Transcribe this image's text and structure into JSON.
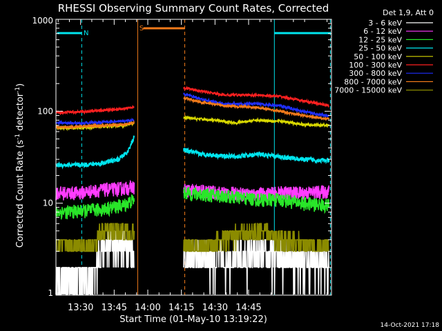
{
  "chart_data": {
    "type": "line",
    "title": "RHESSI Observing Summary Count Rates, Corrected",
    "xlabel": "Start Time (01-May-10 13:19:22)",
    "ylabel": "Corrected Count Rate (s^-1 detector^-1)",
    "ylabel_parts": [
      "Corrected Count Rate (s",
      "-1",
      " detector",
      "-1",
      ")"
    ],
    "yscale": "log",
    "ylim": [
      1,
      1000
    ],
    "xlim_minutes_after_1319": [
      0,
      123
    ],
    "x_ticks": [
      "13:30",
      "13:45",
      "14:00",
      "14:15",
      "14:30",
      "14:45"
    ],
    "y_ticks": [
      "1",
      "10",
      "100",
      "1000"
    ],
    "legend_header": "Det 1,9, Att 0",
    "footer_date": "14-Oct-2021 17:18",
    "markers": [
      {
        "label": "N",
        "color": "#00e5ee"
      },
      {
        "label": "S",
        "color": "#f07a1a"
      }
    ],
    "data_gap_minutes": [
      36,
      57
    ],
    "series": [
      {
        "name": "3 - 6 keV",
        "color": "#ffffff",
        "pre": [
          [
            0,
            1.6
          ],
          [
            18,
            1.6
          ],
          [
            19,
            3.0
          ],
          [
            28,
            3.8
          ],
          [
            35,
            3.2
          ]
        ],
        "post": [
          [
            57,
            2.6
          ],
          [
            75,
            2.5
          ],
          [
            90,
            2.7
          ],
          [
            100,
            2.6
          ],
          [
            112,
            2.4
          ],
          [
            118,
            2.2
          ],
          [
            122,
            2.2
          ]
        ]
      },
      {
        "name": "6 - 12 keV",
        "color": "#ff3cff",
        "pre": [
          [
            0,
            13
          ],
          [
            10,
            13
          ],
          [
            20,
            14
          ],
          [
            30,
            14.5
          ],
          [
            35,
            15
          ]
        ],
        "post": [
          [
            57,
            14
          ],
          [
            75,
            13
          ],
          [
            90,
            12.5
          ],
          [
            100,
            13
          ],
          [
            110,
            13
          ],
          [
            122,
            13.5
          ]
        ]
      },
      {
        "name": "12 - 25 keV",
        "color": "#29e629",
        "pre": [
          [
            0,
            8
          ],
          [
            10,
            8.2
          ],
          [
            20,
            8.6
          ],
          [
            30,
            9.5
          ],
          [
            35,
            11
          ]
        ],
        "post": [
          [
            57,
            13
          ],
          [
            75,
            12
          ],
          [
            90,
            11
          ],
          [
            100,
            11
          ],
          [
            110,
            10
          ],
          [
            122,
            9.5
          ]
        ]
      },
      {
        "name": "25 - 50 keV",
        "color": "#00e5ee",
        "pre": [
          [
            0,
            26
          ],
          [
            10,
            26
          ],
          [
            20,
            27
          ],
          [
            28,
            30
          ],
          [
            32,
            36
          ],
          [
            35,
            52
          ]
        ],
        "post": [
          [
            57,
            38
          ],
          [
            65,
            34
          ],
          [
            80,
            32
          ],
          [
            90,
            34
          ],
          [
            100,
            32
          ],
          [
            110,
            30
          ],
          [
            122,
            29
          ]
        ]
      },
      {
        "name": "50 - 100 keV",
        "color": "#d8d800",
        "pre": [
          [
            0,
            66
          ],
          [
            10,
            66
          ],
          [
            20,
            68
          ],
          [
            30,
            70
          ],
          [
            35,
            74
          ]
        ],
        "post": [
          [
            57,
            85
          ],
          [
            70,
            80
          ],
          [
            80,
            75
          ],
          [
            90,
            80
          ],
          [
            100,
            78
          ],
          [
            110,
            72
          ],
          [
            122,
            70
          ]
        ]
      },
      {
        "name": "100 - 300 keV",
        "color": "#ff2020",
        "pre": [
          [
            0,
            97
          ],
          [
            10,
            98
          ],
          [
            20,
            102
          ],
          [
            30,
            106
          ],
          [
            35,
            112
          ]
        ],
        "post": [
          [
            57,
            180
          ],
          [
            65,
            165
          ],
          [
            75,
            150
          ],
          [
            90,
            150
          ],
          [
            100,
            145
          ],
          [
            110,
            130
          ],
          [
            122,
            115
          ]
        ]
      },
      {
        "name": "300 - 800 keV",
        "color": "#1f2fff",
        "pre": [
          [
            0,
            75
          ],
          [
            10,
            74
          ],
          [
            20,
            76
          ],
          [
            30,
            78
          ],
          [
            35,
            80
          ]
        ],
        "post": [
          [
            57,
            155
          ],
          [
            65,
            135
          ],
          [
            75,
            120
          ],
          [
            90,
            120
          ],
          [
            100,
            115
          ],
          [
            110,
            100
          ],
          [
            122,
            88
          ]
        ]
      },
      {
        "name": "800 - 7000 keV",
        "color": "#f07a1a",
        "pre": [
          [
            0,
            67
          ],
          [
            10,
            68
          ],
          [
            20,
            70
          ],
          [
            30,
            72
          ],
          [
            35,
            75
          ]
        ],
        "post": [
          [
            57,
            140
          ],
          [
            65,
            125
          ],
          [
            75,
            115
          ],
          [
            90,
            110
          ],
          [
            100,
            100
          ],
          [
            110,
            90
          ],
          [
            122,
            82
          ]
        ]
      },
      {
        "name": "7000 - 15000 keV",
        "color": "#8b8b00",
        "pre": [
          [
            0,
            3.5
          ],
          [
            18,
            3.5
          ],
          [
            19,
            4.8
          ],
          [
            28,
            5.0
          ],
          [
            35,
            4.6
          ]
        ],
        "post": [
          [
            57,
            3.6
          ],
          [
            70,
            3.6
          ],
          [
            80,
            4.5
          ],
          [
            90,
            5.0
          ],
          [
            100,
            4.2
          ],
          [
            110,
            3.6
          ],
          [
            122,
            3.2
          ]
        ]
      }
    ]
  }
}
